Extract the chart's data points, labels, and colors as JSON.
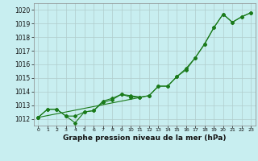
{
  "xlabel": "Graphe pression niveau de la mer (hPa)",
  "x": [
    0,
    1,
    2,
    3,
    4,
    5,
    6,
    7,
    8,
    9,
    10,
    11,
    12,
    13,
    14,
    15,
    16,
    17,
    18,
    19,
    20,
    21,
    22,
    23
  ],
  "line1": [
    1012.1,
    1012.7,
    1012.7,
    1012.2,
    1012.2,
    1012.5,
    1012.6,
    1013.3,
    1013.5,
    1013.8,
    1013.7,
    1013.6,
    1013.7,
    1014.4,
    1014.4,
    1015.1,
    1015.6,
    1016.5,
    1017.5,
    1018.7,
    1019.7,
    1019.1,
    1019.5,
    1019.8
  ],
  "line2": [
    1012.1,
    1012.7,
    1012.7,
    1012.2,
    1011.7,
    1012.5,
    1012.6,
    1013.2,
    1013.4,
    1013.8,
    1013.6,
    1013.6,
    null,
    null,
    null,
    null,
    null,
    null,
    null,
    null,
    null,
    null,
    null,
    null
  ],
  "line3": [
    1012.1,
    null,
    null,
    null,
    null,
    null,
    null,
    null,
    null,
    null,
    null,
    null,
    1013.7,
    1014.4,
    1014.4,
    1015.1,
    1015.7,
    1016.5,
    1017.5,
    1018.7,
    1019.7,
    1019.1,
    1019.5,
    1019.8
  ],
  "line_color": "#1a7a1a",
  "bg_color": "#c8eef0",
  "grid_color": "#b0cccc",
  "ylim": [
    1011.5,
    1020.5
  ],
  "xlim": [
    -0.5,
    23.5
  ],
  "yticks": [
    1012,
    1013,
    1014,
    1015,
    1016,
    1017,
    1018,
    1019,
    1020
  ],
  "xticks": [
    0,
    1,
    2,
    3,
    4,
    5,
    6,
    7,
    8,
    9,
    10,
    11,
    12,
    13,
    14,
    15,
    16,
    17,
    18,
    19,
    20,
    21,
    22,
    23
  ]
}
